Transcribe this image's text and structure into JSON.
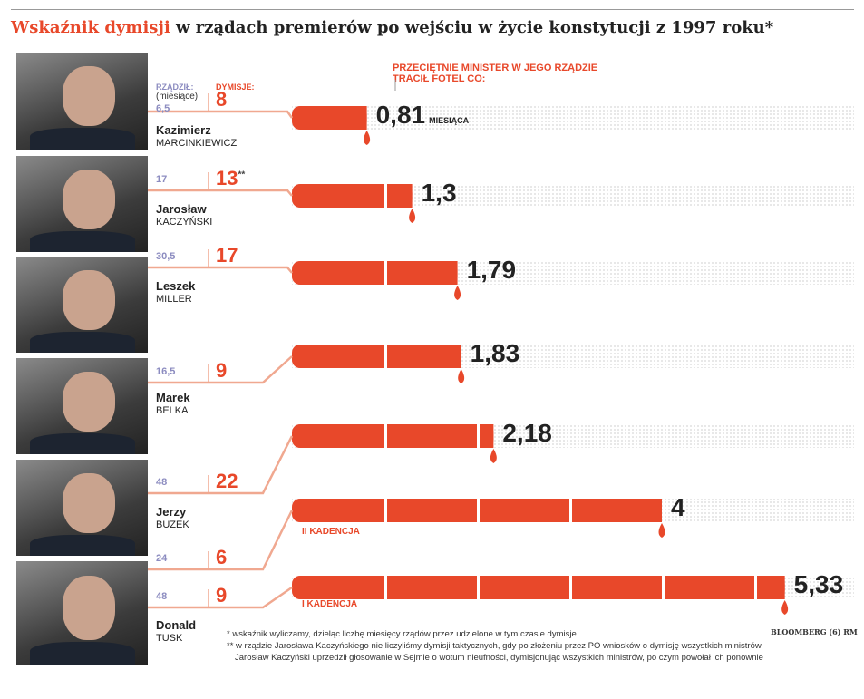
{
  "title": {
    "accent": "Wskaźnik dymisji",
    "rest": " w rządach premierów po wejściu w życie konstytucji z 1997 roku*"
  },
  "header_labels": {
    "ruled": "RZĄDZIŁ:",
    "ruled_unit": "(miesiące)",
    "dismissals": "DYMISJE:",
    "avg": "PRZECIĘTNIE MINISTER W JEGO RZĄDZIE",
    "avg2": "TRACIŁ FOTEL CO:",
    "unit": "MIESIĄCA"
  },
  "colors": {
    "accent": "#e8482a",
    "ruled": "#8c8cc0",
    "connector": "#f0a890",
    "dots": "#d8d8d8"
  },
  "chart_data": {
    "type": "bar",
    "orientation": "horizontal",
    "categories": [
      "Kazimierz Marcinkiewicz",
      "Jarosław Kaczyński",
      "Leszek Miller",
      "Marek Belka",
      "Jerzy Buzek",
      "Donald Tusk (II kadencja)",
      "Donald Tusk (I kadencja)"
    ],
    "values": [
      0.81,
      1.3,
      1.79,
      1.83,
      2.18,
      4,
      5.33
    ],
    "value_labels": [
      "0,81",
      "1,3",
      "1,79",
      "1,83",
      "2,18",
      "4",
      "5,33"
    ],
    "unit": "miesiąca"
  },
  "rows": [
    {
      "first": "Kazimierz",
      "last": "MARCINKIEWICZ",
      "ruled": "6,5",
      "dismissals": "8",
      "mark": ""
    },
    {
      "first": "Jarosław",
      "last": "KACZYŃSKI",
      "ruled": "17",
      "dismissals": "13",
      "mark": "**"
    },
    {
      "first": "Leszek",
      "last": "MILLER",
      "ruled": "30,5",
      "dismissals": "17",
      "mark": ""
    },
    {
      "first": "Marek",
      "last": "BELKA",
      "ruled": "16,5",
      "dismissals": "9",
      "mark": ""
    },
    {
      "first": "Jerzy",
      "last": "BUZEK",
      "ruled": "48",
      "dismissals": "22",
      "mark": ""
    },
    {
      "first": "",
      "last": "",
      "ruled": "24",
      "dismissals": "6",
      "mark": ""
    },
    {
      "first": "Donald",
      "last": "TUSK",
      "ruled": "48",
      "dismissals": "9",
      "mark": ""
    }
  ],
  "kadencja": [
    "II KADENCJA",
    "I KADENCJA"
  ],
  "footnotes": [
    "* wskaźnik wyliczamy, dzieląc liczbę miesięcy rządów przez udzielone w tym czasie dymisje",
    "** w rządzie Jarosława Kaczyńskiego nie liczyliśmy dymisji taktycznych, gdy po złożeniu przez PO wniosków o dymisję wszystkich ministrów",
    "Jarosław Kaczyński uprzedził głosowanie w Sejmie o wotum nieufności, dymisjonując wszystkich ministrów, po czym powołał ich ponownie"
  ],
  "source": "BLOOMBERG (6)   RM"
}
